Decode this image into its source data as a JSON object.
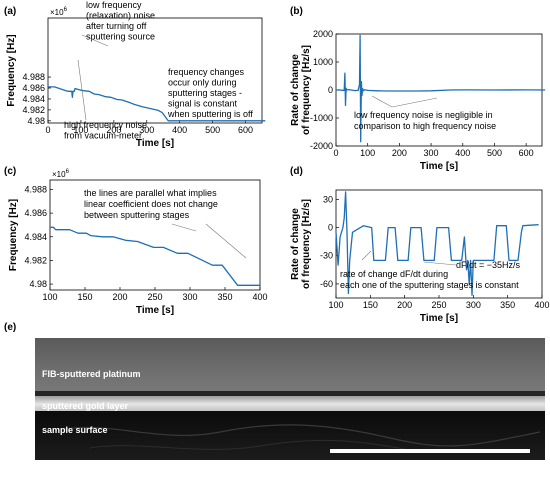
{
  "panel_labels": [
    "(a)",
    "(b)",
    "(c)",
    "(d)",
    "(e)"
  ],
  "chart_data": [
    {
      "type": "line",
      "xlabel": "Time [s]",
      "ylabel": "Frequency [Hz]",
      "exponent": "×10",
      "exponent_power": "6",
      "xlim": [
        0,
        650
      ],
      "ylim": [
        4.9796,
        4.9988
      ],
      "xticks": [
        0,
        100,
        200,
        300,
        400,
        500,
        600
      ],
      "yticks": [
        "4.98",
        "4.982",
        "4.984",
        "4.986",
        "4.988"
      ],
      "ytick_values": [
        4.98,
        4.982,
        4.984,
        4.986,
        4.988
      ],
      "color": "#1f6fb4",
      "x": [
        0,
        20,
        30,
        50,
        60,
        72,
        74,
        76,
        80,
        82,
        100,
        108,
        125,
        140,
        155,
        175,
        190,
        210,
        225,
        250,
        262,
        285,
        300,
        335,
        347,
        365,
        660
      ],
      "y": [
        4.9862,
        4.9862,
        4.986,
        4.9856,
        4.9854,
        4.9854,
        4.9843,
        4.9854,
        4.9854,
        4.9859,
        4.9856,
        4.9855,
        4.9854,
        4.9849,
        4.9848,
        4.9844,
        4.9843,
        4.9839,
        4.9838,
        4.9833,
        4.983,
        4.9826,
        4.9824,
        4.9819,
        4.9815,
        4.98,
        4.98
      ],
      "annotations": [
        "low frequency|(relaxation) noise|after turning off|sputtering source",
        "frequency changes|occur only during|sputtering stages -|signal is constant|when sputtering is off",
        "high frequency noise|from vacuum-meter"
      ]
    },
    {
      "type": "line",
      "xlabel": "Time [s]",
      "ylabel": "Rate of change|of frequency [Hz/s]",
      "xlim": [
        0,
        650
      ],
      "ylim": [
        -2000,
        2000
      ],
      "xticks": [
        0,
        100,
        200,
        300,
        400,
        500,
        600
      ],
      "yticks": [
        "-2000",
        "-1000",
        "0",
        "1000",
        "2000"
      ],
      "ytick_values": [
        -2000,
        -1000,
        0,
        1000,
        2000
      ],
      "color": "#1f6fb4",
      "x": [
        0,
        10,
        20,
        26,
        28,
        30,
        32,
        34,
        40,
        60,
        70,
        74,
        76,
        78,
        80,
        82,
        84,
        86,
        90,
        100,
        130,
        160,
        200,
        260,
        300,
        360,
        400,
        500,
        600,
        660
      ],
      "y": [
        0,
        5,
        -10,
        -10,
        600,
        -550,
        60,
        0,
        15,
        -20,
        -10,
        200,
        1950,
        -1850,
        300,
        -200,
        50,
        -30,
        10,
        -15,
        -30,
        -35,
        -35,
        -35,
        -30,
        0,
        5,
        0,
        5,
        0
      ],
      "annotations": [
        "low frequency noise is negligible in|comparison to high frequency noise"
      ]
    },
    {
      "type": "line",
      "xlabel": "Time [s]",
      "ylabel": "Frequency [Hz]",
      "exponent": "×10",
      "exponent_power": "6",
      "xlim": [
        100,
        400
      ],
      "ylim": [
        4.9795,
        4.9888
      ],
      "xticks": [
        100,
        150,
        200,
        250,
        300,
        350,
        400
      ],
      "yticks": [
        "4.98",
        "4.982",
        "4.984",
        "4.986",
        "4.988"
      ],
      "ytick_values": [
        4.98,
        4.982,
        4.984,
        4.986,
        4.988
      ],
      "color": "#1f6fb4",
      "x": [
        100,
        105,
        108,
        128,
        140,
        152,
        158,
        175,
        190,
        208,
        225,
        248,
        262,
        282,
        297,
        332,
        346,
        368,
        400
      ],
      "y": [
        4.9848,
        4.9848,
        4.9846,
        4.9846,
        4.9843,
        4.9843,
        4.9841,
        4.984,
        4.984,
        4.9837,
        4.9836,
        4.9831,
        4.9831,
        4.9826,
        4.9826,
        4.9816,
        4.9816,
        4.9799,
        4.9799
      ],
      "annotations": [
        "the lines are parallel what implies|linear coefficient does not change|between sputtering stages"
      ]
    },
    {
      "type": "line",
      "xlabel": "Time [s]",
      "ylabel": "Rate of change|of frequency [Hz/s]",
      "xlim": [
        100,
        400
      ],
      "ylim": [
        -75,
        40
      ],
      "xticks": [
        100,
        150,
        200,
        250,
        300,
        350,
        400
      ],
      "yticks": [
        "-60",
        "-30",
        "0",
        "30"
      ],
      "ytick_values": [
        -60,
        -30,
        0,
        30
      ],
      "color": "#1f6fb4",
      "x": [
        100,
        103,
        106,
        110,
        112,
        114,
        116,
        118,
        120,
        124,
        140,
        152,
        155,
        172,
        176,
        186,
        190,
        205,
        209,
        224,
        228,
        243,
        247,
        264,
        268,
        283,
        287,
        290,
        292,
        294,
        296,
        298,
        300,
        302,
        330,
        334,
        348,
        352,
        365,
        370,
        372,
        395
      ],
      "y": [
        -5,
        -40,
        -10,
        0,
        10,
        38,
        -5,
        -70,
        -35,
        -5,
        2,
        0,
        -35,
        -35,
        0,
        0,
        -35,
        -35,
        0,
        0,
        -35,
        -35,
        0,
        0,
        -35,
        -35,
        -10,
        -45,
        -35,
        -60,
        -35,
        -72,
        -35,
        -35,
        -35,
        2,
        2,
        -35,
        -35,
        -5,
        2,
        3
      ],
      "annotations": [
        "dF/dt = −35Hz/s",
        "rate of change dF/dt during|each one of the sputtering stages is constant"
      ]
    }
  ],
  "micrograph": {
    "labels": [
      "FIB-sputtered platinum",
      "sputtered gold layer",
      "sample surface"
    ]
  }
}
